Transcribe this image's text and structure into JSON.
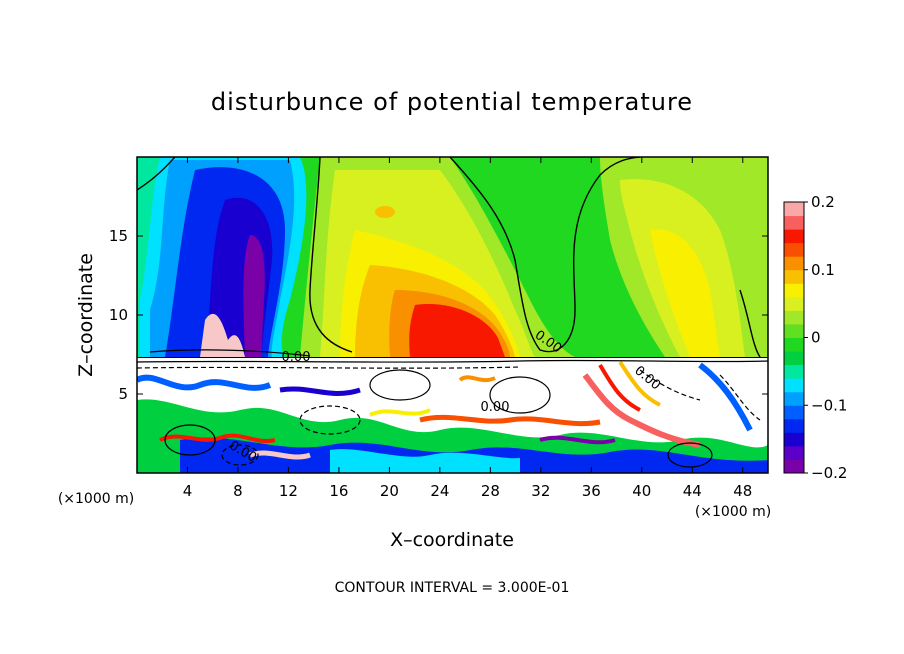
{
  "chart_data": {
    "type": "heatmap",
    "title": "disturbunce of potential temperature",
    "xlabel": "X–coordinate",
    "ylabel": "Z–coordinate",
    "x_unit": "(×1000 m)",
    "y_unit": "(×1000 m)",
    "footer": "CONTOUR INTERVAL = 3.000E-01",
    "xlim": [
      0,
      50
    ],
    "ylim": [
      0,
      20
    ],
    "x_ticks": [
      4,
      8,
      12,
      16,
      20,
      24,
      28,
      32,
      36,
      40,
      44,
      48
    ],
    "x_tick_labels": [
      "4",
      "8",
      "12",
      "16",
      "20",
      "24",
      "28",
      "32",
      "36",
      "40",
      "44",
      "48"
    ],
    "y_ticks": [
      5,
      10,
      15
    ],
    "y_tick_labels": [
      "5",
      "10",
      "15"
    ],
    "colorbar": {
      "range": [
        -0.2,
        0.2
      ],
      "ticks": [
        0.2,
        0.1,
        0,
        -0.1,
        -0.2
      ],
      "tick_labels": [
        "0.2",
        "0.1",
        "0",
        "−0.1",
        "−0.2"
      ],
      "colors": [
        "#7a00a8",
        "#5a00c8",
        "#1a00d0",
        "#0028f0",
        "#0060ff",
        "#00a0ff",
        "#00e0ff",
        "#00e8a0",
        "#00d040",
        "#20d820",
        "#60e020",
        "#a0e828",
        "#d8f020",
        "#f8f000",
        "#f8c000",
        "#f89000",
        "#f85000",
        "#f81800",
        "#f86060",
        "#f8a8a8"
      ]
    },
    "contour_labels": [
      "0.00",
      "0.00",
      "0.00",
      "0.00",
      "0.00"
    ],
    "grid": false,
    "legend": "colorbar right"
  }
}
